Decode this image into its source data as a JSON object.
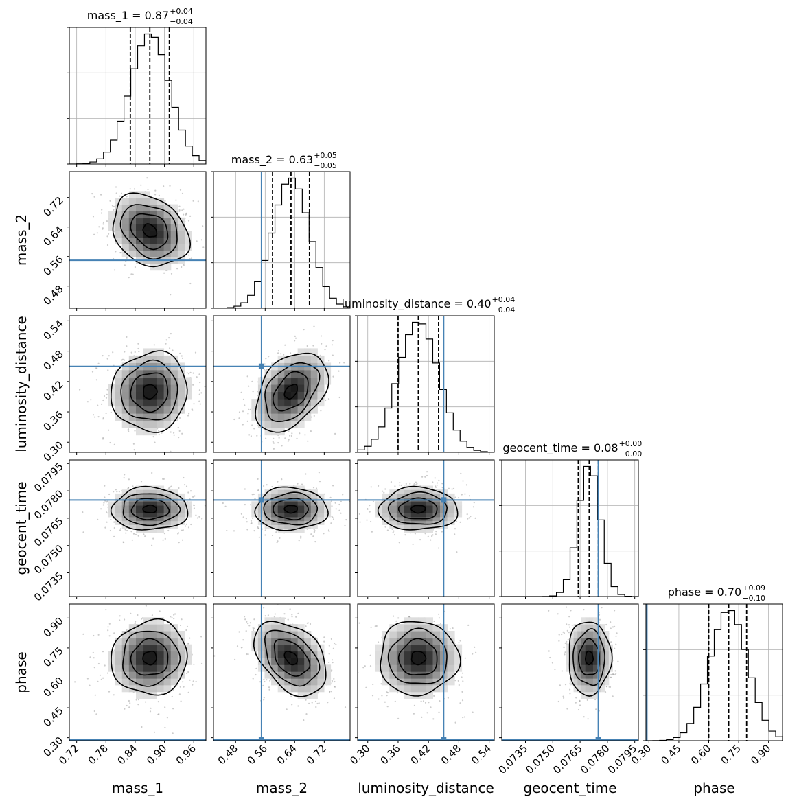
{
  "chart_data": {
    "type": "corner",
    "parameters": [
      "mass_1",
      "mass_2",
      "luminosity_distance",
      "geocent_time",
      "phase"
    ],
    "titles": [
      {
        "name": "mass_1",
        "eq": " = ",
        "median": "0.87",
        "plus": "+0.04",
        "minus": "−0.04"
      },
      {
        "name": "mass_2",
        "eq": " = ",
        "median": "0.63",
        "plus": "+0.05",
        "minus": "−0.05"
      },
      {
        "name": "luminosity_distance",
        "eq": " = ",
        "median": "0.40",
        "plus": "+0.04",
        "minus": "−0.04"
      },
      {
        "name": "geocent_time",
        "eq": " = ",
        "median": "0.08",
        "plus": "+0.00",
        "minus": "−0.00"
      },
      {
        "name": "phase",
        "eq": " = ",
        "median": "0.70",
        "plus": "+0.09",
        "minus": "−0.10"
      }
    ],
    "ranges": [
      [
        0.705,
        0.985
      ],
      [
        0.42,
        0.79
      ],
      [
        0.28,
        0.55
      ],
      [
        0.0722,
        0.0797
      ],
      [
        0.285,
        0.97
      ]
    ],
    "ticks": [
      [
        "0.72",
        "0.78",
        "0.84",
        "0.90",
        "0.96"
      ],
      [
        "0.48",
        "0.56",
        "0.64",
        "0.72"
      ],
      [
        "0.30",
        "0.36",
        "0.42",
        "0.48",
        "0.54"
      ],
      [
        "0.0735",
        "0.0750",
        "0.0765",
        "0.0780",
        "0.0795"
      ],
      [
        "0.30",
        "0.45",
        "0.60",
        "0.75",
        "0.90"
      ]
    ],
    "medians": [
      0.87,
      0.63,
      0.4,
      0.077,
      0.7
    ],
    "sigmas": [
      0.04,
      0.05,
      0.04,
      0.0006,
      0.095
    ],
    "quantiles": [
      [
        0.83,
        0.87,
        0.91
      ],
      [
        0.58,
        0.63,
        0.68
      ],
      [
        0.36,
        0.4,
        0.44
      ],
      [
        0.0764,
        0.077,
        0.0775
      ],
      [
        0.6,
        0.7,
        0.79
      ]
    ],
    "truths": [
      null,
      0.55,
      0.45,
      0.0775,
      0.29
    ],
    "truth_color": "#4682b4",
    "correlations": [
      [
        0,
        1,
        -0.25
      ],
      [
        0,
        2,
        0.05
      ],
      [
        0,
        3,
        0.0
      ],
      [
        0,
        4,
        0.05
      ],
      [
        1,
        2,
        0.4
      ],
      [
        1,
        3,
        0.0
      ],
      [
        1,
        4,
        -0.4
      ],
      [
        2,
        3,
        0.0
      ],
      [
        2,
        4,
        0.0
      ],
      [
        3,
        4,
        0.0
      ]
    ],
    "grid": true
  }
}
